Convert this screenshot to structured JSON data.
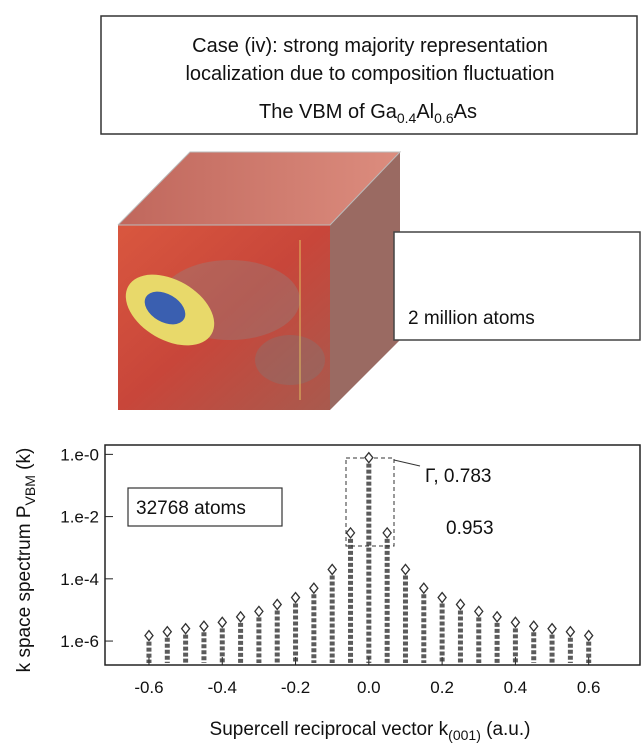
{
  "chart_data": {
    "type": "scatter",
    "title_lines": [
      "Case (iv): strong majority representation",
      "localization due to composition fluctuation"
    ],
    "subtitle_parts": [
      "The VBM of ",
      "Ga",
      "0.4",
      "Al",
      "0.6",
      "As"
    ],
    "inset_label": "2 million atoms",
    "box_label": "32768 atoms",
    "annotations": [
      "Γ, 0.783",
      "0.953"
    ],
    "ylabel_parts": [
      "k space spectrum P",
      "VBM",
      " (k)"
    ],
    "xlabel_parts": [
      "Supercell reciprocal vector k",
      "(001)",
      " (a.u.)"
    ],
    "x": [
      -0.6,
      -0.55,
      -0.5,
      -0.45,
      -0.4,
      -0.35,
      -0.3,
      -0.25,
      -0.2,
      -0.15,
      -0.1,
      -0.05,
      0,
      0.05,
      0.1,
      0.15,
      0.2,
      0.25,
      0.3,
      0.35,
      0.4,
      0.45,
      0.5,
      0.55,
      0.6
    ],
    "values": [
      1.5e-06,
      2e-06,
      2.5e-06,
      3e-06,
      4e-06,
      6e-06,
      9e-06,
      1.5e-05,
      2.5e-05,
      5e-05,
      0.0002,
      0.003,
      0.783,
      0.003,
      0.0002,
      5e-05,
      2.5e-05,
      1.5e-05,
      9e-06,
      6e-06,
      4e-06,
      3e-06,
      2.5e-06,
      2e-06,
      1.5e-06
    ],
    "color": "#333333",
    "xlim": [
      -0.72,
      0.74
    ],
    "ylim": [
      1.7e-07,
      2
    ],
    "log_y": true,
    "xticks": [
      -0.6,
      -0.4,
      -0.2,
      {
        "value": 0,
        "label": "0.0"
      },
      0.2,
      0.4,
      0.6
    ],
    "yticks": [
      {
        "value": 1,
        "label": "1.e-0"
      },
      {
        "value": 0.01,
        "label": "1.e-2"
      },
      {
        "value": 0.0001,
        "label": "1.e-4"
      },
      {
        "value": 1e-06,
        "label": "1.e-6"
      }
    ]
  }
}
